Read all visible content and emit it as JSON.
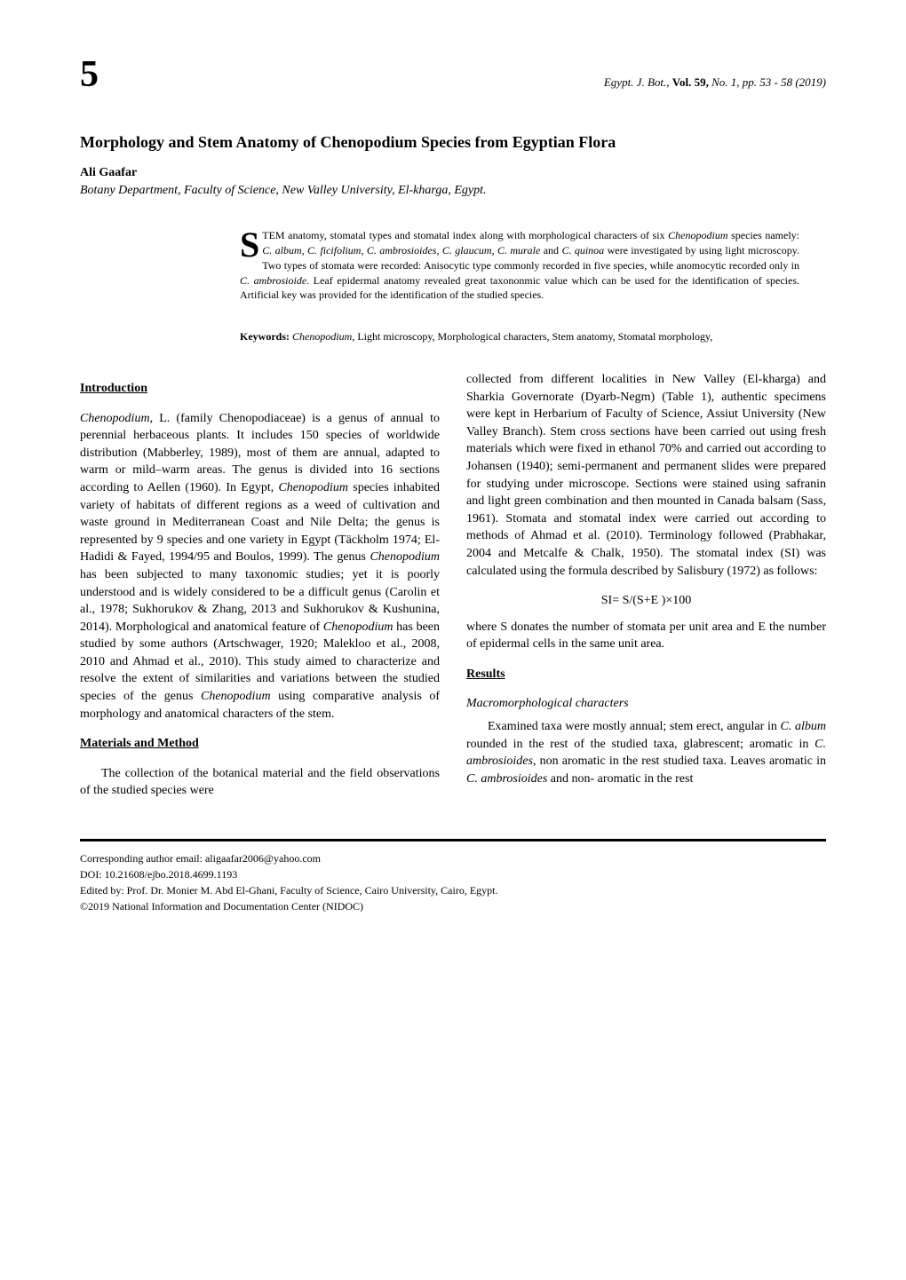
{
  "chapter_number": "5",
  "journal_ref_italic": "Egypt. J. Bot.,",
  "journal_ref_vol_label": "Vol. 59,",
  "journal_ref_rest": " No. 1, pp. 53 - 58 (2019)",
  "title": "Morphology and Stem Anatomy of Chenopodium Species from Egyptian Flora",
  "author": "Ali Gaafar",
  "affiliation": "Botany Department, Faculty of Science, New Valley University, El-kharga, Egypt.",
  "abstract": {
    "drop_cap": "S",
    "opening": "TEM anatomy, stomatal types and stomatal index along with morphological characters of six ",
    "sp_intro": "Chenopodium",
    "opening2": " species namely: ",
    "sp1": "C. album",
    "sp2": "C. ficifolium",
    "sp3": "C. ambrosioides",
    "sp4": "C. glaucum",
    "sp5": "C. murale",
    "sp6": "C. quinoa",
    "body1": " were investigated by using light microscopy. Two types of stomata were recorded: Anisocytic type commonly recorded in five species, while anomocytic recorded only in ",
    "sp7": "C. ambrosioide",
    "body2": ". Leaf epidermal anatomy revealed great taxononmic value which can be used for the identification of species. Artificial key was provided for the identification of the studied species."
  },
  "keywords": {
    "label": "Keywords:",
    "sp": "Chenopodium",
    "rest": ", Light microscopy, Morphological characters, Stem anatomy, Stomatal morphology,"
  },
  "sections": {
    "introduction_heading": "Introduction",
    "materials_heading": "Materials and Method",
    "results_heading": "Results",
    "macro_heading": "Macromorphological characters"
  },
  "intro": {
    "sp1": "Chenopodium",
    "p1a": ", L. (family Chenopodiaceae) is a genus of annual to perennial herbaceous plants. It includes 150 species of worldwide distribution (Mabberley, 1989), most of them are annual, adapted to warm or mild–warm areas. The genus is divided into 16 sections according to Aellen (1960). In Egypt, ",
    "sp2": "Chenopodium",
    "p1b": " species inhabited variety of habitats of different regions as a weed of cultivation and waste ground in Mediterranean Coast and Nile Delta; the genus is represented by 9 species and one variety in Egypt (Täckholm 1974; El-Hadidi & Fayed, 1994/95 and Boulos, 1999). The genus ",
    "sp3": "Chenopodium",
    "p1c": " has been subjected to many taxonomic studies; yet it is poorly understood and is widely considered to be a difficult genus (Carolin et al., 1978; Sukhorukov & Zhang, 2013 and Sukhorukov & Kushunina, 2014). Morphological and anatomical feature of ",
    "sp4": "Chenopodium",
    "p1d": " has been studied by some authors (Artschwager, 1920; Malekloo et al., 2008, 2010 and Ahmad et al., 2010). This study aimed to characterize and resolve the extent of similarities and variations between the studied species of the genus ",
    "sp5": "Chenopodium",
    "p1e": " using comparative analysis of morphology and anatomical characters of the stem."
  },
  "materials": {
    "p1": "The collection of the botanical material and the field observations of the studied species were collected from different localities in New Valley (El-kharga) and Sharkia Governorate (Dyarb-Negm) (Table 1), authentic specimens were kept in Herbarium of Faculty of Science, Assiut University (New Valley Branch). Stem cross sections have been carried out using fresh materials which were fixed in ethanol 70% and carried out according to Johansen (1940); semi-permanent and permanent slides were prepared for studying under microscope. Sections were stained using safranin and light green combination and then mounted in Canada balsam (Sass, 1961). Stomata and stomatal index were carried out according to methods of Ahmad et al. (2010). Terminology followed (Prabhakar, 2004 and Metcalfe & Chalk, 1950). The stomatal index (SI) was calculated using the formula described by Salisbury (1972) as follows:",
    "formula": "SI= S/(S+E )×100",
    "p2": "where S donates the number of stomata per unit area and E the number of epidermal cells in the same unit area."
  },
  "results": {
    "p1a": "Examined taxa were mostly annual; stem erect, angular in ",
    "sp1": "C. album",
    "p1b": " rounded in the rest of the studied taxa, glabrescent; aromatic in ",
    "sp2": "C. ambrosioides",
    "p1c": ", non aromatic in the rest studied taxa. Leaves aromatic in ",
    "sp3": "C. ambrosioides",
    "p1d": " and non- aromatic in the rest"
  },
  "footer": {
    "corresponding": "Corresponding author email: aligaafar2006@yahoo.com",
    "doi": "DOI: 10.21608/ejbo.2018.4699.1193",
    "edited": "Edited by: Prof. Dr. Monier M. Abd El-Ghani, Faculty of Science, Cairo University, Cairo, Egypt.",
    "copyright": "©2019 National Information and Documentation Center (NIDOC)"
  }
}
